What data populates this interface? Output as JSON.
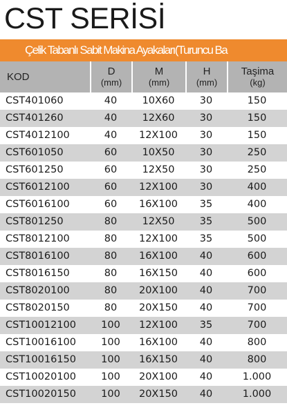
{
  "title": "CST SERİSİ",
  "banner": "Çelik Tabanlı Sabit Makina Ayakaları(Turuncu Ba",
  "columns": [
    {
      "line1": "KOD",
      "line2": ""
    },
    {
      "line1": "D",
      "line2": "(mm)"
    },
    {
      "line1": "M",
      "line2": "(mm)"
    },
    {
      "line1": "H",
      "line2": "(mm)"
    },
    {
      "line1": "Taşima",
      "line2": "(kg)"
    }
  ],
  "rows": [
    {
      "kod": "CST401060",
      "d": "40",
      "m": "10X60",
      "h": "30",
      "t": "150"
    },
    {
      "kod": "CST401260",
      "d": "40",
      "m": "12X60",
      "h": "30",
      "t": "150"
    },
    {
      "kod": "CST4012100",
      "d": "40",
      "m": "12X100",
      "h": "30",
      "t": "150"
    },
    {
      "kod": "CST601050",
      "d": "60",
      "m": "10X50",
      "h": "30",
      "t": "250"
    },
    {
      "kod": "CST601250",
      "d": "60",
      "m": "12X50",
      "h": "30",
      "t": "250"
    },
    {
      "kod": "CST6012100",
      "d": "60",
      "m": "12X100",
      "h": "30",
      "t": "400"
    },
    {
      "kod": "CST6016100",
      "d": "60",
      "m": "16X100",
      "h": "35",
      "t": "400"
    },
    {
      "kod": "CST801250",
      "d": "80",
      "m": "12X50",
      "h": "35",
      "t": "500"
    },
    {
      "kod": "CST8012100",
      "d": "80",
      "m": "12X100",
      "h": "35",
      "t": "500"
    },
    {
      "kod": "CST8016100",
      "d": "80",
      "m": "16X100",
      "h": "40",
      "t": "600"
    },
    {
      "kod": "CST8016150",
      "d": "80",
      "m": "16X150",
      "h": "40",
      "t": "600"
    },
    {
      "kod": "CST8020100",
      "d": "80",
      "m": "20X100",
      "h": "40",
      "t": "700"
    },
    {
      "kod": "CST8020150",
      "d": "80",
      "m": "20X150",
      "h": "40",
      "t": "700"
    },
    {
      "kod": "CST10012100",
      "d": "100",
      "m": "12X100",
      "h": "35",
      "t": "700"
    },
    {
      "kod": "CST10016100",
      "d": "100",
      "m": "16X100",
      "h": "40",
      "t": "800"
    },
    {
      "kod": "CST10016150",
      "d": "100",
      "m": "16X150",
      "h": "40",
      "t": "800"
    },
    {
      "kod": "CST10020100",
      "d": "100",
      "m": "20X100",
      "h": "40",
      "t": "1.000"
    },
    {
      "kod": "CST10020150",
      "d": "100",
      "m": "20X150",
      "h": "40",
      "t": "1.000"
    }
  ]
}
